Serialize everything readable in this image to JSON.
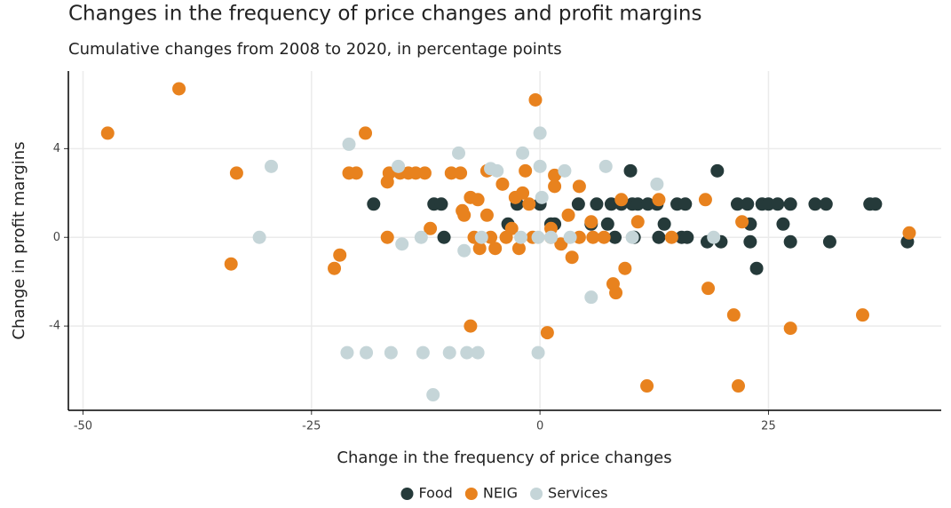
{
  "chart_data": {
    "type": "scatter",
    "title": "Changes in the frequency of price changes and profit margins",
    "subtitle": "Cumulative changes from 2008 to 2020, in percentage points",
    "x_label": "Change in the frequency of price changes",
    "y_label": "Change in profit margins",
    "xlim": [
      -51.6,
      43.9
    ],
    "xticks": [
      -50,
      -25,
      0,
      25
    ],
    "ylim": [
      -7.8,
      7.5
    ],
    "yticks": [
      -4,
      0,
      4
    ],
    "grid": true,
    "legend": "bottom",
    "series": [
      {
        "name": "Food",
        "color": "#253a3a",
        "x": [
          -18.2,
          -11.6,
          -10.8,
          -10.5,
          -3.5,
          -2.5,
          0,
          1.2,
          1.6,
          4.2,
          5.6,
          6.2,
          7.4,
          7.8,
          8.2,
          8.9,
          9.9,
          10.1,
          10.3,
          10.7,
          11.8,
          12.8,
          13.0,
          13.6,
          15.0,
          15.5,
          15.9,
          16.1,
          19.4,
          18.3,
          19.8,
          21.6,
          22.7,
          23.0,
          23.0,
          23.7,
          24.3,
          25.0,
          26.0,
          26.6,
          27.4,
          27.4,
          30.1,
          31.3,
          31.7,
          36.1,
          36.7,
          40.2
        ],
        "values": [
          1.5,
          1.5,
          1.5,
          0,
          0.6,
          1.5,
          1.5,
          0.6,
          0.6,
          1.5,
          0.6,
          1.5,
          0.6,
          1.5,
          0,
          1.5,
          3,
          1.5,
          0,
          1.5,
          1.5,
          1.5,
          0,
          0.6,
          1.5,
          0,
          1.5,
          0,
          3,
          -0.2,
          -0.2,
          1.5,
          1.5,
          0.6,
          -0.2,
          -1.4,
          1.5,
          1.5,
          1.5,
          0.6,
          1.5,
          -0.2,
          1.5,
          1.5,
          -0.2,
          1.5,
          1.5,
          -0.2
        ]
      },
      {
        "name": "NEIG",
        "color": "#e8821e",
        "x": [
          -47.3,
          -39.5,
          -33.2,
          -33.8,
          -22.5,
          -21.9,
          -20.9,
          -20.1,
          -19.1,
          -16.7,
          -16.7,
          -16.5,
          -15.3,
          -14.4,
          -13.6,
          -12.6,
          -12.0,
          -9.7,
          -8.7,
          -8.5,
          -8.3,
          -7.6,
          -6.8,
          -7.6,
          -7.2,
          -6.6,
          -5.8,
          -5.8,
          -5.4,
          -4.9,
          -4.1,
          -3.7,
          -3.1,
          -2.7,
          -2.3,
          -1.9,
          -1.6,
          -1.2,
          -0.5,
          -0.8,
          0.8,
          1.2,
          1.2,
          1.6,
          1.6,
          2.3,
          3.1,
          3.5,
          4.3,
          4.3,
          5.6,
          5.8,
          7.0,
          8.0,
          8.3,
          8.9,
          9.3,
          10.7,
          11.7,
          13.0,
          14.4,
          18.1,
          18.4,
          21.2,
          21.7,
          22.1,
          27.4,
          35.3,
          40.4
        ],
        "values": [
          4.7,
          6.7,
          2.9,
          -1.2,
          -1.4,
          -0.8,
          2.9,
          2.9,
          4.7,
          2.5,
          0,
          2.9,
          2.9,
          2.9,
          2.9,
          2.9,
          0.4,
          2.9,
          2.9,
          1.2,
          1.0,
          1.8,
          1.7,
          -4,
          0,
          -0.5,
          1.0,
          3,
          0,
          -0.5,
          2.4,
          0,
          0.4,
          1.8,
          -0.5,
          2.0,
          3,
          1.5,
          6.2,
          0,
          -4.3,
          0.4,
          0,
          2.3,
          2.8,
          -0.3,
          1.0,
          -0.9,
          2.3,
          0,
          0.7,
          0,
          0,
          -2.1,
          -2.5,
          1.7,
          -1.4,
          0.7,
          -6.7,
          1.7,
          0,
          1.7,
          -2.3,
          -3.5,
          -6.7,
          0.7,
          -4.1,
          -3.5,
          0.2
        ]
      },
      {
        "name": "Services",
        "color": "#c5d5d8",
        "x": [
          -30.7,
          -29.4,
          -20.9,
          -21.1,
          -19.0,
          -16.3,
          -15.5,
          -15.1,
          -13.0,
          -12.8,
          -11.7,
          -9.9,
          -8.9,
          -8.3,
          -8.0,
          -6.8,
          -6.4,
          -5.4,
          -4.7,
          -2.1,
          -1.9,
          -0.2,
          0,
          -0.2,
          0,
          0.2,
          1.2,
          2.7,
          3.3,
          5.6,
          7.2,
          10.1,
          12.8,
          19.0
        ],
        "values": [
          0,
          3.2,
          4.2,
          -5.2,
          -5.2,
          -5.2,
          3.2,
          -0.3,
          0,
          -5.2,
          -7.1,
          -5.2,
          3.8,
          -0.6,
          -5.2,
          -5.2,
          0,
          3.1,
          3.0,
          0,
          3.8,
          -5.2,
          4.7,
          0,
          3.2,
          1.8,
          0,
          3.0,
          0,
          -2.7,
          3.2,
          0,
          2.4,
          0
        ]
      }
    ]
  }
}
